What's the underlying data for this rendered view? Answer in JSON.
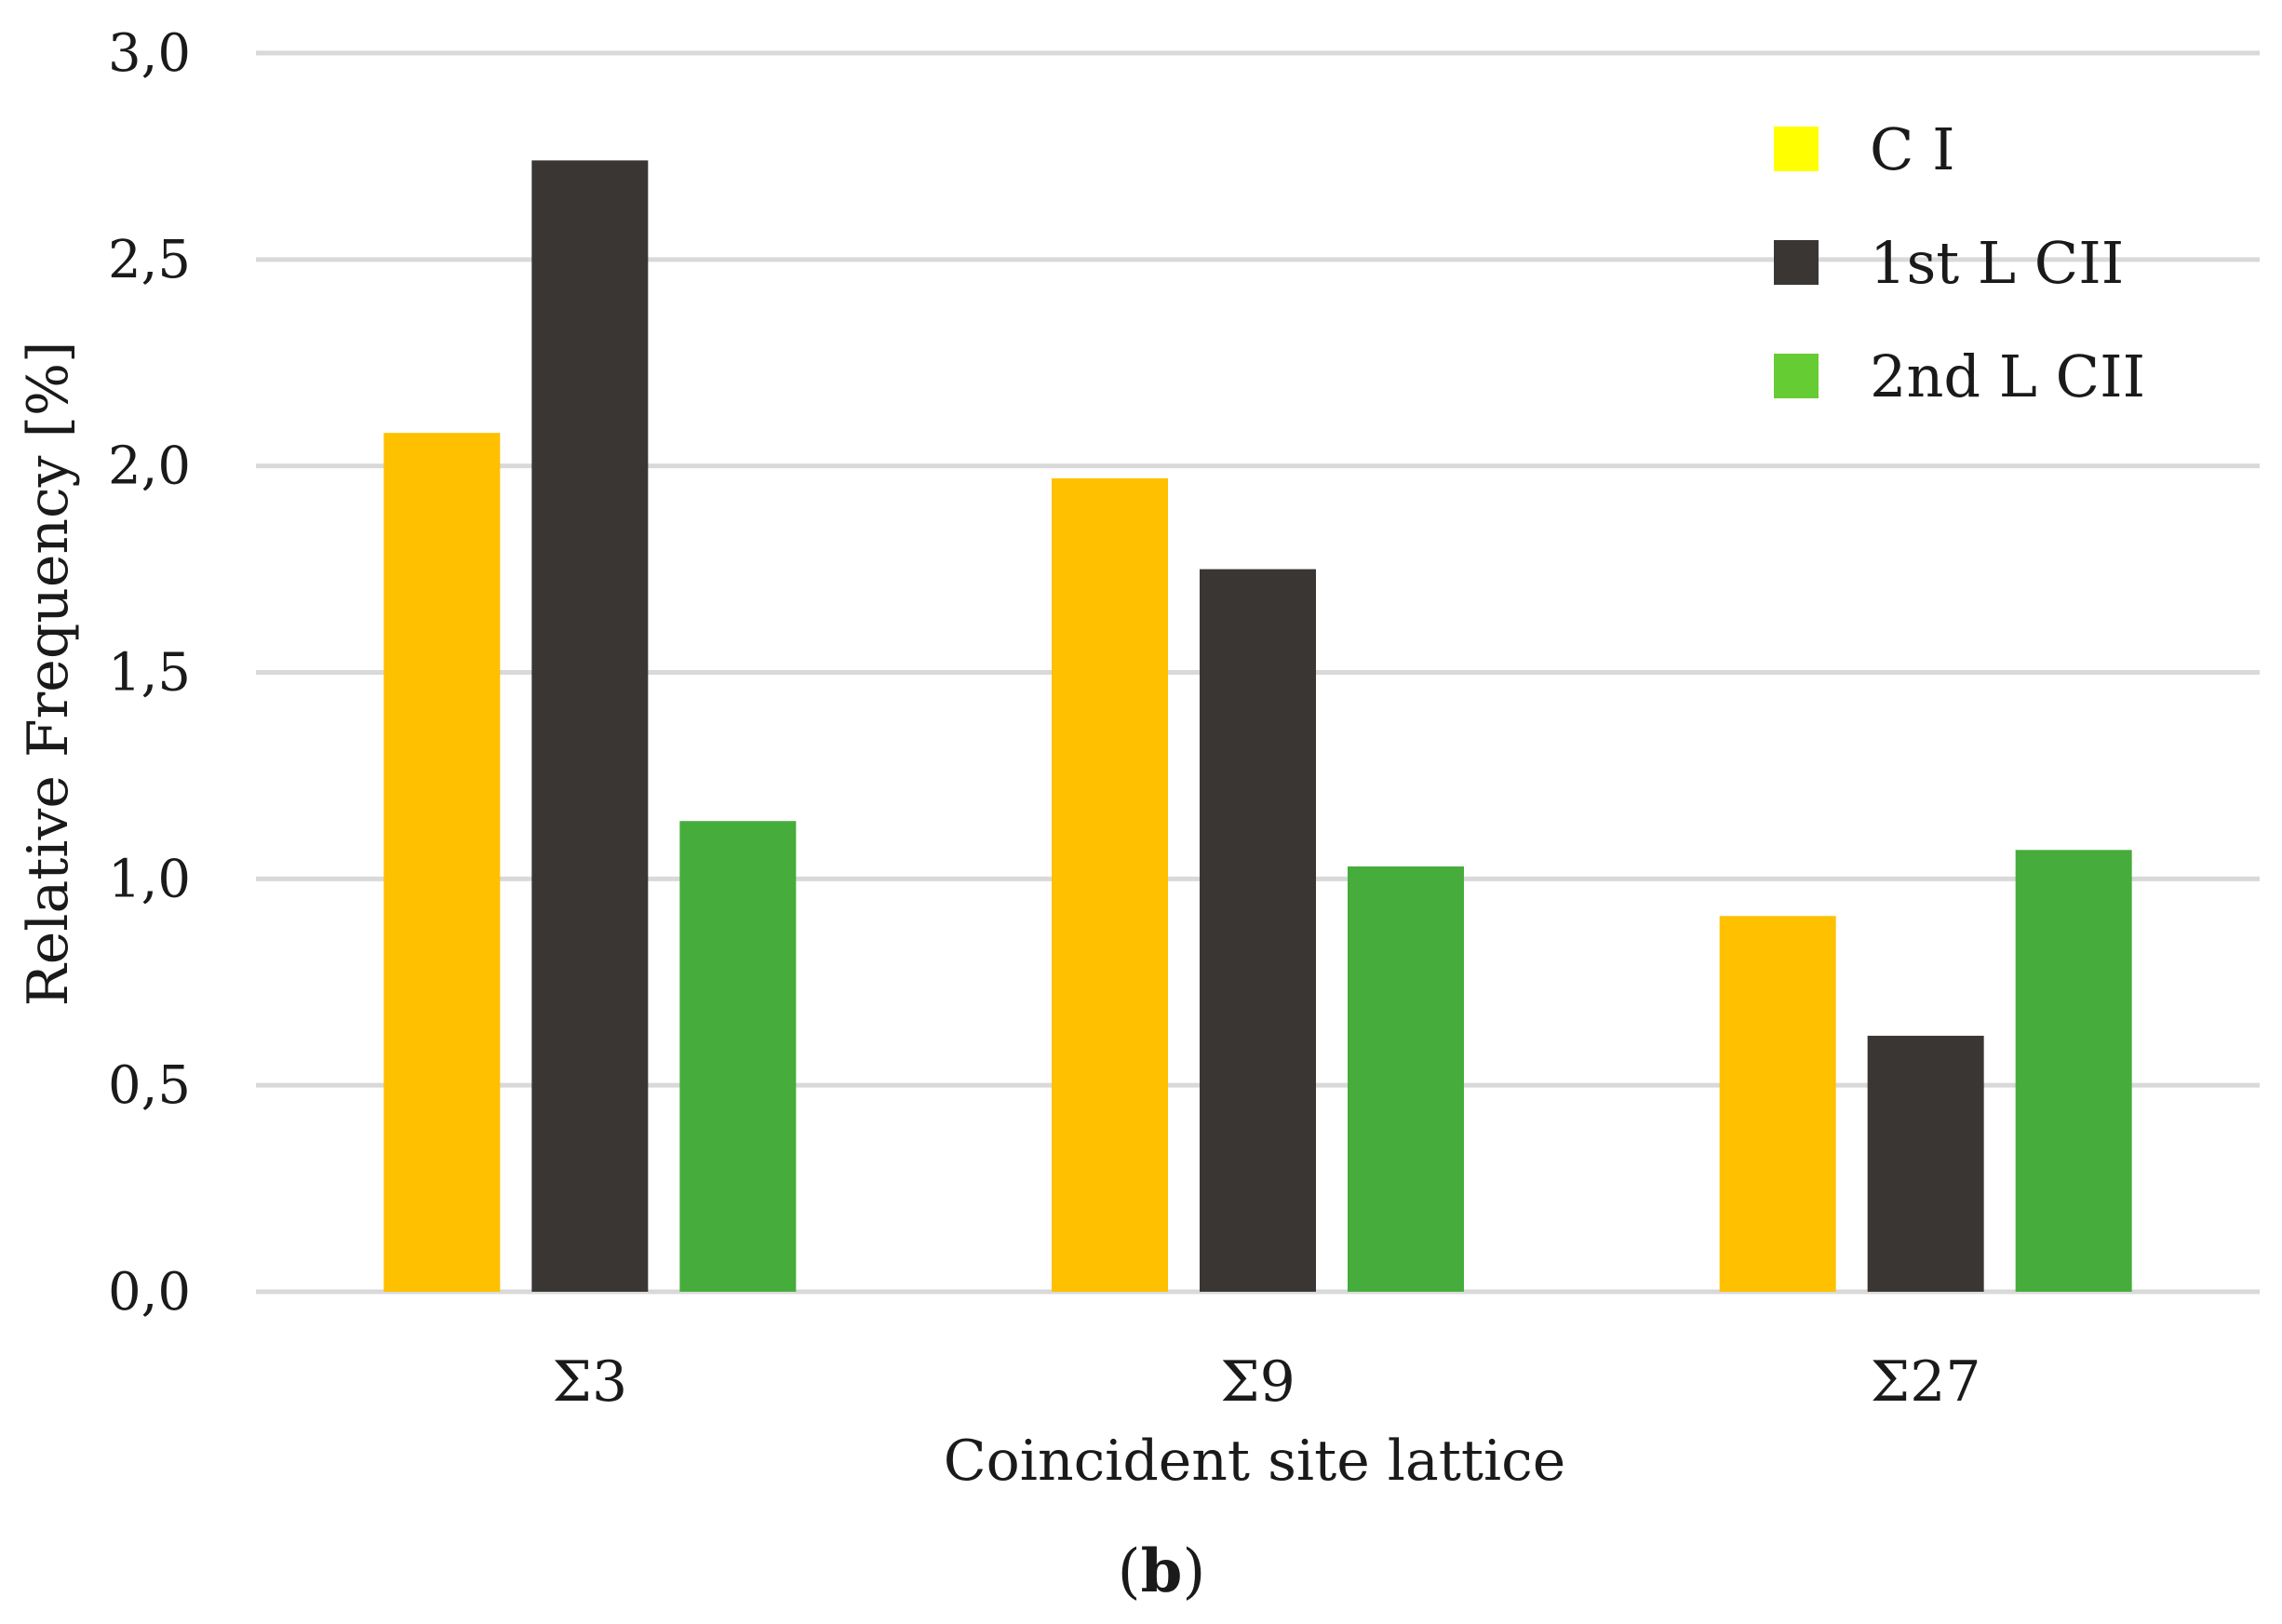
{
  "chart_data": {
    "type": "bar",
    "title": "",
    "xlabel": "Coincident site lattice",
    "ylabel": "Relative Frequency [%]",
    "ylim": [
      0,
      3.0
    ],
    "yticks": [
      "0,0",
      "0,5",
      "1,0",
      "1,5",
      "2,0",
      "2,5",
      "3,0"
    ],
    "grid": true,
    "legend_position": "top-right",
    "categories": [
      "Σ3",
      "Σ9",
      "Σ27"
    ],
    "series": [
      {
        "name": "C I",
        "legend_color": "#ffff00",
        "color": "#ffc000",
        "values": [
          2.08,
          1.97,
          0.91
        ]
      },
      {
        "name": "1st L CII",
        "legend_color": "#3a3634",
        "color": "#3a3634",
        "values": [
          2.74,
          1.75,
          0.62
        ]
      },
      {
        "name": "2nd L CII",
        "legend_color": "#66cc33",
        "color": "#46ad3c",
        "values": [
          1.14,
          1.03,
          1.07
        ]
      }
    ],
    "caption": {
      "open": "(",
      "label": "b",
      "close": ")"
    }
  }
}
